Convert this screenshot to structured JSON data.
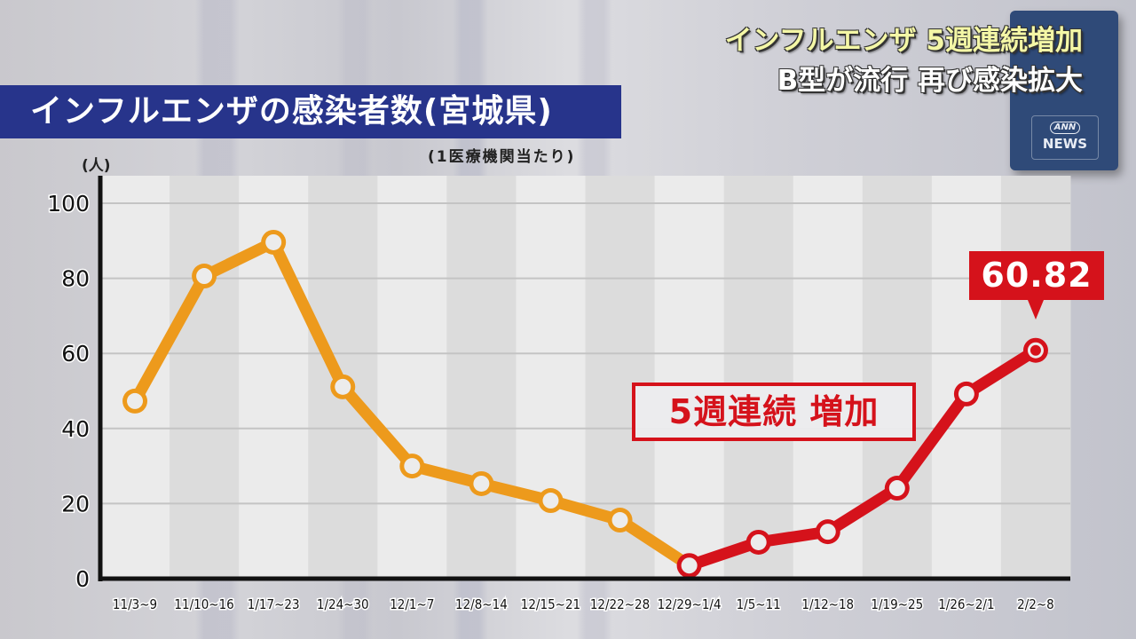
{
  "headline": {
    "line1": "インフルエンザ 5週連続増加",
    "line2": "B型が流行 再び感染拡大"
  },
  "logo": {
    "top": "ANN",
    "bottom": "NEWS"
  },
  "title_bar": "インフルエンザの感染者数(宮城県)",
  "subnote": "(1医療機関当たり)",
  "unit_label": "(人)",
  "callout": "5週連続 増加",
  "latest_value_label": "60.82",
  "colors": {
    "title_bg": "#27348b",
    "decline_line": "#ed9a1c",
    "increase_line": "#d5121b",
    "marker_fill": "#ececec",
    "axis": "#111111",
    "band_light": "#ebebeb",
    "band_dark": "#dcdcdc",
    "grid": "#c4c4c4"
  },
  "chart_data": {
    "type": "line",
    "title": "インフルエンザの感染者数(宮城県)",
    "subtitle": "(1医療機関当たり)",
    "xlabel": "",
    "ylabel": "(人)",
    "ylim": [
      0,
      100
    ],
    "yticks": [
      0,
      20,
      40,
      60,
      80,
      100
    ],
    "grid": true,
    "categories": [
      "11/3~9",
      "11/10~16",
      "1/17~23",
      "1/24~30",
      "12/1~7",
      "12/8~14",
      "12/15~21",
      "12/22~28",
      "12/29~1/4",
      "1/5~11",
      "1/12~18",
      "1/19~25",
      "1/26~2/1",
      "2/2~8"
    ],
    "values": [
      47.3,
      80.6,
      89.6,
      51.1,
      30.0,
      25.3,
      20.8,
      15.6,
      3.5,
      9.7,
      12.5,
      24.1,
      49.2,
      60.82
    ],
    "series": [
      {
        "name": "decline",
        "color": "#ed9a1c",
        "from_index": 0,
        "to_index": 8
      },
      {
        "name": "increase (5週連続 増加)",
        "color": "#d5121b",
        "from_index": 8,
        "to_index": 13
      }
    ],
    "annotations": [
      {
        "text": "5週連続 増加",
        "type": "box"
      },
      {
        "text": "60.82",
        "type": "value-callout",
        "index": 13
      }
    ],
    "legend": "none"
  }
}
